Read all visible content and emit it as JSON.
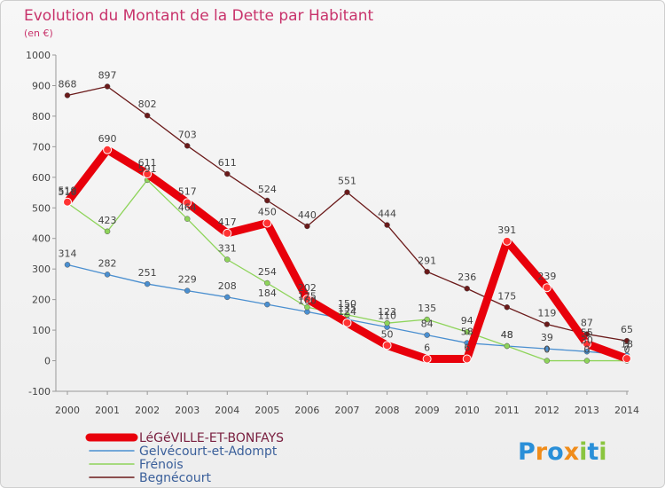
{
  "brand": {
    "text": "Proxiti",
    "letters": [
      "P",
      "r",
      "o",
      "x",
      "i",
      "t",
      "i"
    ],
    "colors": [
      "#2a8fd8",
      "#f08c1a",
      "#2a8fd8",
      "#f08c1a",
      "#8ac53f",
      "#2a8fd8",
      "#8ac53f"
    ]
  },
  "chart_data": {
    "type": "line",
    "title": "Evolution du Montant de la Dette par Habitant",
    "subtitle": "(en €)",
    "xlabel": "",
    "ylabel": "",
    "ylim": [
      -100,
      1000
    ],
    "yticks": [
      -100,
      0,
      100,
      200,
      300,
      400,
      500,
      600,
      700,
      800,
      900,
      1000
    ],
    "grid": false,
    "legend_position": "bottom-left",
    "x": [
      "2000",
      "2001",
      "2002",
      "2003",
      "2004",
      "2005",
      "2006",
      "2007",
      "2008",
      "2009",
      "2010",
      "2011",
      "2012",
      "2013",
      "2014"
    ],
    "series": [
      {
        "name": "LéGéVILLE-ET-BONFAYS",
        "color": "#e8000b",
        "values": [
          519,
          690,
          611,
          517,
          417,
          450,
          202,
          124,
          50,
          6,
          6,
          391,
          239,
          55,
          7
        ]
      },
      {
        "name": "Gelvécourt-et-Adompt",
        "color": "#4a8fd0",
        "values": [
          314,
          282,
          251,
          229,
          208,
          184,
          160,
          135,
          110,
          84,
          58,
          48,
          39,
          30,
          18
        ]
      },
      {
        "name": "Frénois",
        "color": "#8ed45a",
        "values": [
          516,
          423,
          591,
          464,
          331,
          254,
          175,
          150,
          123,
          135,
          94,
          48,
          0,
          0,
          0
        ]
      },
      {
        "name": "Begnécourt",
        "color": "#6b1a1a",
        "values": [
          868,
          897,
          802,
          703,
          611,
          524,
          440,
          551,
          444,
          291,
          236,
          175,
          119,
          87,
          65
        ]
      }
    ]
  }
}
